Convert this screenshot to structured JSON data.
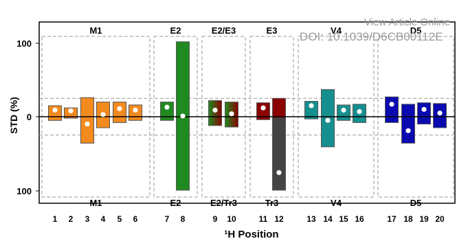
{
  "watermark": {
    "line1": "View Article Online",
    "line2": "DOI: 10.1039/D6CB00112E"
  },
  "colors": {
    "M1": "#f28a1e",
    "E2": "#1f8a1f",
    "E3": "#8b0000",
    "Tr3": "#444444",
    "V4": "#168f8f",
    "D5": "#0a0ab0"
  },
  "chart_data": {
    "type": "bar",
    "ylabel": "STD (%)",
    "xlabel": "¹H Position",
    "y_ticks": [
      "100",
      "0",
      "100"
    ],
    "categories": [
      "1",
      "2",
      "3",
      "4",
      "5",
      "6",
      "7",
      "8",
      "9",
      "10",
      "11",
      "12",
      "13",
      "14",
      "15",
      "16",
      "17",
      "18",
      "19",
      "20"
    ],
    "top_group_labels": [
      "M1",
      "E2",
      "E2/E3",
      "E3",
      "V4",
      "D5"
    ],
    "bottom_group_labels": [
      "M1",
      "E2",
      "E2/Tr3",
      "Tr3",
      "V4",
      "D5"
    ],
    "bars": [
      {
        "position": "1",
        "group": "M1",
        "upper": 15,
        "lower": -5,
        "marker": 9,
        "fill": [
          "M1"
        ]
      },
      {
        "position": "2",
        "group": "M1",
        "upper": 12,
        "lower": -2,
        "marker": 8,
        "fill": [
          "M1"
        ]
      },
      {
        "position": "3",
        "group": "M1",
        "upper": 26,
        "lower": -36,
        "marker": -10,
        "fill": [
          "M1"
        ]
      },
      {
        "position": "4",
        "group": "M1",
        "upper": 20,
        "lower": -15,
        "marker": 3,
        "fill": [
          "M1"
        ]
      },
      {
        "position": "5",
        "group": "M1",
        "upper": 20,
        "lower": -8,
        "marker": 11,
        "fill": [
          "M1"
        ]
      },
      {
        "position": "6",
        "group": "M1",
        "upper": 16,
        "lower": -5,
        "marker": 9,
        "fill": [
          "M1"
        ]
      },
      {
        "position": "7",
        "group": "E2",
        "upper": 20,
        "lower": -5,
        "marker": 13,
        "fill": [
          "E2"
        ]
      },
      {
        "position": "8",
        "group": "E2",
        "upper": 102,
        "lower": -100,
        "marker": 1,
        "fill": [
          "E2"
        ]
      },
      {
        "position": "9",
        "group": "E2/E3",
        "upper": 22,
        "lower": -12,
        "marker": 9,
        "fill": [
          "E2",
          "E3"
        ]
      },
      {
        "position": "10",
        "group": "E2/E3",
        "upper": 20,
        "lower": -14,
        "marker": 4,
        "fill": [
          "E2",
          "E3"
        ]
      },
      {
        "position": "11",
        "group": "E3",
        "upper": 19,
        "lower": -4,
        "marker": 12,
        "fill": [
          "E3"
        ]
      },
      {
        "position": "12",
        "group": "E3",
        "upper": 25,
        "lower": -100,
        "marker": -76,
        "fill": [
          "E3",
          "Tr3"
        ]
      },
      {
        "position": "13",
        "group": "V4",
        "upper": 21,
        "lower": -3,
        "marker": 15,
        "fill": [
          "V4"
        ]
      },
      {
        "position": "14",
        "group": "V4",
        "upper": 37,
        "lower": -41,
        "marker": -5,
        "fill": [
          "V4"
        ]
      },
      {
        "position": "15",
        "group": "V4",
        "upper": 16,
        "lower": -5,
        "marker": 9,
        "fill": [
          "V4"
        ]
      },
      {
        "position": "16",
        "group": "V4",
        "upper": 17,
        "lower": -8,
        "marker": 7,
        "fill": [
          "V4"
        ]
      },
      {
        "position": "17",
        "group": "D5",
        "upper": 27,
        "lower": -8,
        "marker": 17,
        "fill": [
          "D5"
        ]
      },
      {
        "position": "18",
        "group": "D5",
        "upper": 17,
        "lower": -36,
        "marker": -19,
        "fill": [
          "D5"
        ]
      },
      {
        "position": "19",
        "group": "D5",
        "upper": 19,
        "lower": -10,
        "marker": 10,
        "fill": [
          "D5"
        ]
      },
      {
        "position": "20",
        "group": "D5",
        "upper": 18,
        "lower": -15,
        "marker": 5,
        "fill": [
          "D5"
        ]
      }
    ],
    "ylim": [
      -100,
      100
    ],
    "grid": false
  }
}
